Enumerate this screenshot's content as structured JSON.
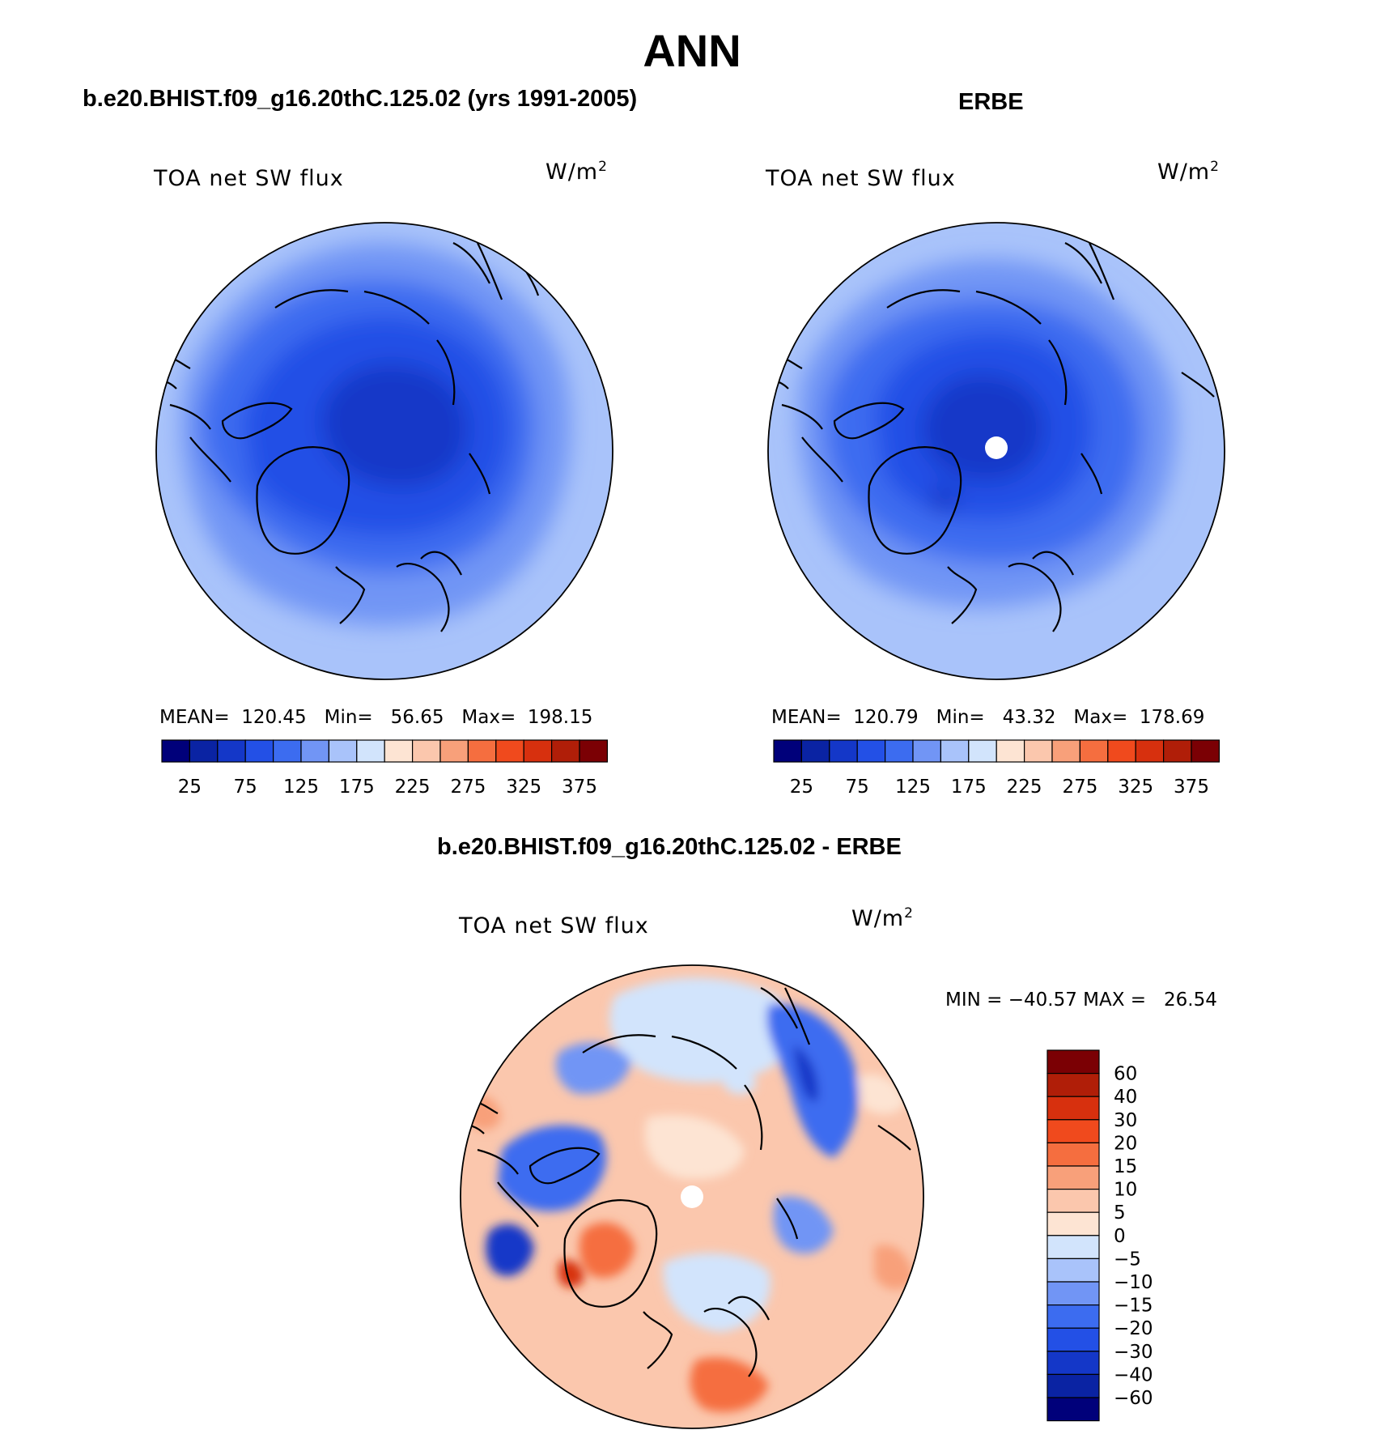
{
  "title": "ANN",
  "panels": [
    {
      "heading": "b.e20.BHIST.f09_g16.20thC.125.02 (yrs 1991-2005)",
      "variable": "TOA net SW flux",
      "units": "W/m",
      "units_exp": "2",
      "stats": "MEAN=  120.45   Min=   56.65   Max=  198.15",
      "mean": 120.45,
      "min": 56.65,
      "max": 198.15
    },
    {
      "heading": "ERBE",
      "variable": "TOA net SW flux",
      "units": "W/m",
      "units_exp": "2",
      "stats": "MEAN=  120.79   Min=   43.32   Max=  178.69",
      "mean": 120.79,
      "min": 43.32,
      "max": 178.69
    },
    {
      "heading": "b.e20.BHIST.f09_g16.20thC.125.02 - ERBE",
      "variable": "TOA net SW flux",
      "units": "W/m",
      "units_exp": "2",
      "stats": "MIN = −40.57 MAX =   26.54",
      "min": -40.57,
      "max": 26.54
    }
  ],
  "colorbar_abs": {
    "colors": [
      "#00007a",
      "#0a23a3",
      "#1437c8",
      "#2350e6",
      "#3c6cf0",
      "#7195f5",
      "#a9c3fa",
      "#d2e4fc",
      "#fde4d3",
      "#fbc7ad",
      "#f8a07a",
      "#f56e3f",
      "#f04a1d",
      "#d7300e",
      "#b01e08",
      "#7b0004"
    ],
    "labels": [
      "25",
      "75",
      "125",
      "175",
      "225",
      "275",
      "325",
      "375"
    ]
  },
  "colorbar_diff": {
    "colors": [
      "#7b0004",
      "#b01e08",
      "#d7300e",
      "#f04a1d",
      "#f56e3f",
      "#f8a07a",
      "#fbc7ad",
      "#fde4d3",
      "#d2e4fc",
      "#a9c3fa",
      "#7195f5",
      "#3c6cf0",
      "#2350e6",
      "#1437c8",
      "#0a23a3",
      "#00007a"
    ],
    "labels": [
      "60",
      "40",
      "30",
      "20",
      "15",
      "10",
      "5",
      "0",
      "−5",
      "−10",
      "−15",
      "−20",
      "−30",
      "−40",
      "−60"
    ]
  }
}
